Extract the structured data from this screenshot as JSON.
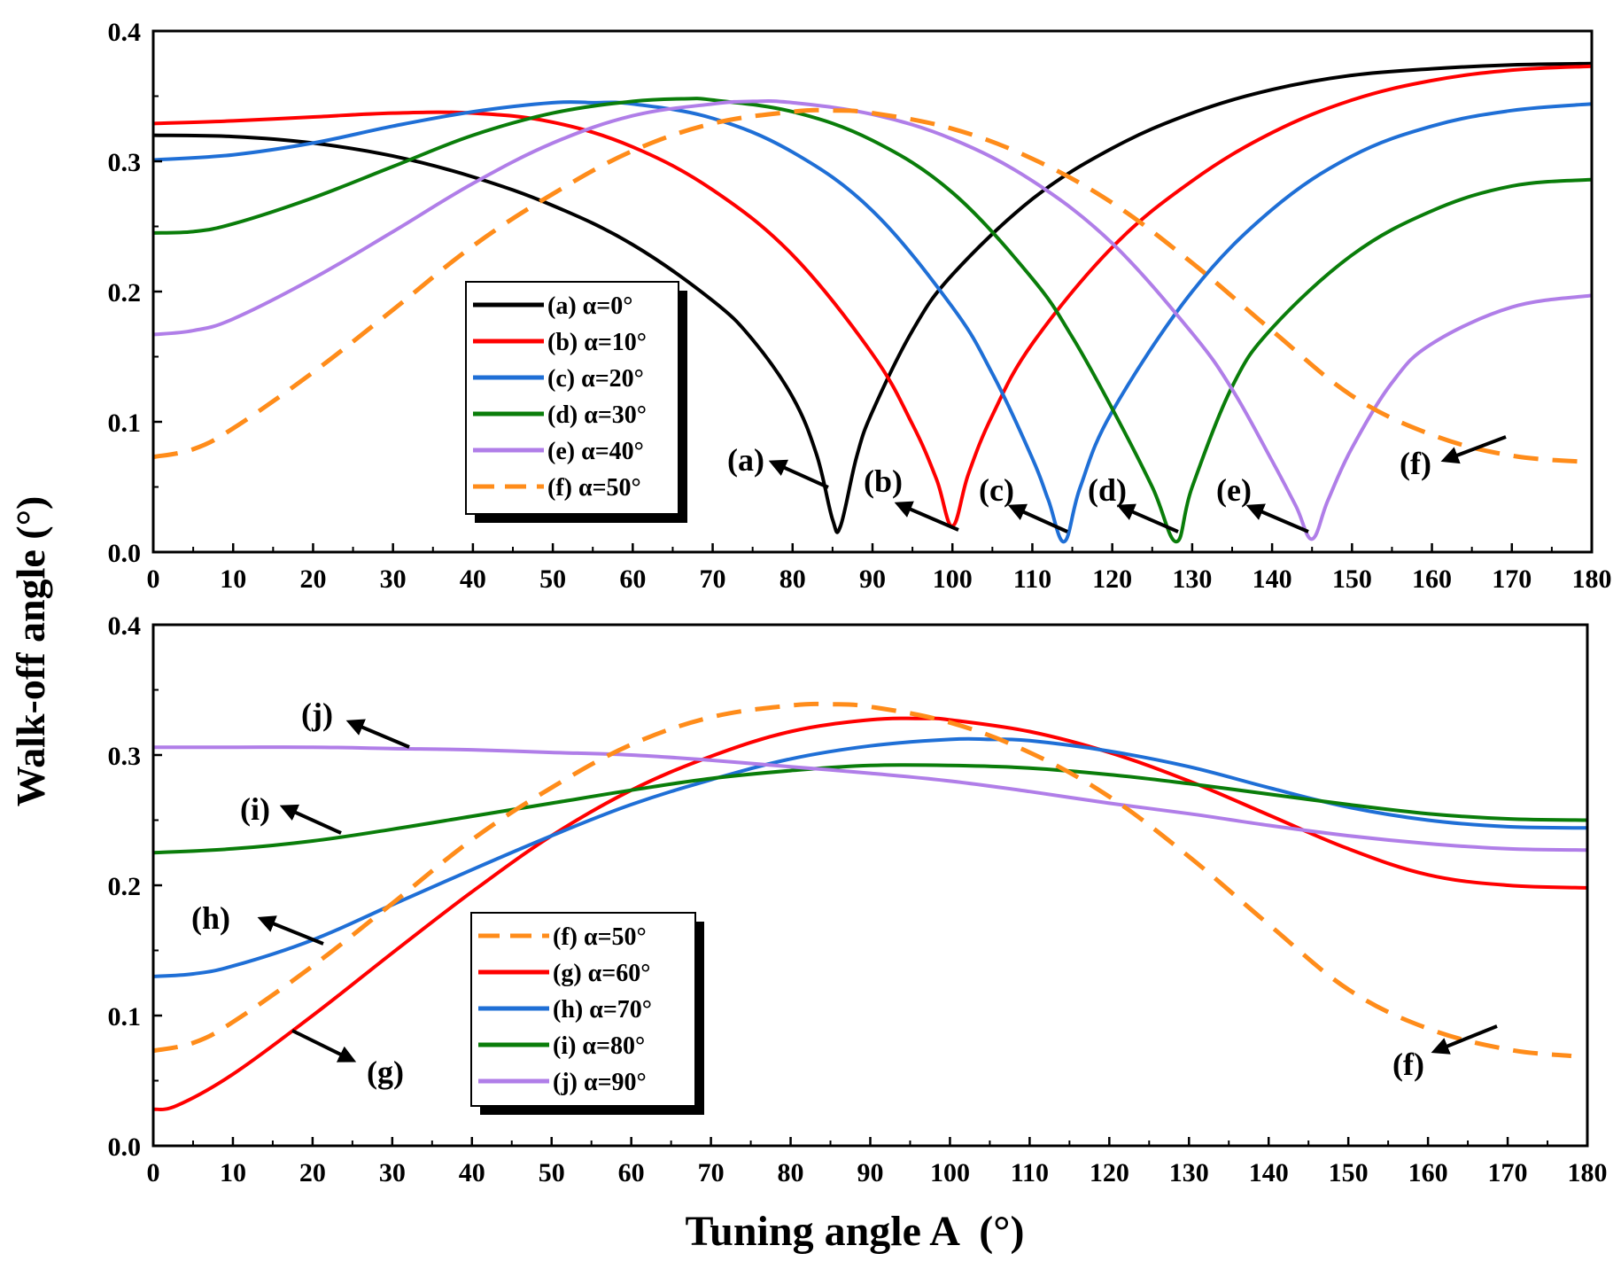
{
  "figure": {
    "ylabel": "Walk-off angle (°)",
    "xlabel": "Tuning angle A  (°)"
  },
  "chart_data": [
    {
      "type": "line",
      "panel": "top",
      "xlim": [
        0,
        180
      ],
      "ylim": [
        0.0,
        0.4
      ],
      "xticks": [
        "0",
        "10",
        "20",
        "30",
        "40",
        "50",
        "60",
        "70",
        "80",
        "90",
        "100",
        "110",
        "120",
        "130",
        "140",
        "150",
        "160",
        "170",
        "180"
      ],
      "yticks": [
        "0.0",
        "0.1",
        "0.2",
        "0.3",
        "0.4"
      ],
      "legend_position": "center-left",
      "series": [
        {
          "name": "(a) α=0°",
          "color": "#000000",
          "dash": "solid",
          "x": [
            0,
            10,
            20,
            30,
            40,
            50,
            60,
            70,
            75,
            80,
            83,
            85,
            86,
            88,
            90,
            95,
            100,
            110,
            120,
            130,
            140,
            150,
            160,
            170,
            180
          ],
          "y": [
            0.32,
            0.319,
            0.314,
            0.304,
            0.288,
            0.266,
            0.236,
            0.193,
            0.163,
            0.119,
            0.075,
            0.025,
            0.02,
            0.073,
            0.108,
            0.17,
            0.213,
            0.271,
            0.31,
            0.337,
            0.355,
            0.366,
            0.371,
            0.374,
            0.375
          ]
        },
        {
          "name": "(b) α=10°",
          "color": "#ff0000",
          "dash": "solid",
          "x": [
            0,
            10,
            20,
            30,
            40,
            50,
            60,
            70,
            80,
            90,
            95,
            98,
            100,
            102,
            105,
            110,
            120,
            130,
            140,
            150,
            160,
            170,
            180
          ],
          "y": [
            0.329,
            0.331,
            0.334,
            0.337,
            0.337,
            0.33,
            0.311,
            0.278,
            0.228,
            0.152,
            0.098,
            0.056,
            0.02,
            0.06,
            0.105,
            0.16,
            0.234,
            0.285,
            0.322,
            0.347,
            0.362,
            0.37,
            0.373
          ]
        },
        {
          "name": "(c) α=20°",
          "color": "#1f6fd6",
          "dash": "solid",
          "x": [
            0,
            10,
            20,
            30,
            40,
            50,
            55,
            60,
            70,
            80,
            90,
            100,
            105,
            110,
            112,
            114,
            116,
            120,
            130,
            140,
            150,
            160,
            170,
            180
          ],
          "y": [
            0.301,
            0.305,
            0.314,
            0.327,
            0.338,
            0.345,
            0.345,
            0.344,
            0.333,
            0.307,
            0.262,
            0.188,
            0.137,
            0.072,
            0.04,
            0.008,
            0.05,
            0.108,
            0.2,
            0.263,
            0.304,
            0.327,
            0.339,
            0.344
          ]
        },
        {
          "name": "(d) α=30°",
          "color": "#0a7d0a",
          "dash": "solid",
          "x": [
            0,
            5,
            10,
            20,
            30,
            40,
            50,
            60,
            67,
            70,
            80,
            90,
            100,
            110,
            115,
            120,
            125,
            128,
            130,
            135,
            140,
            150,
            160,
            170,
            180
          ],
          "y": [
            0.245,
            0.246,
            0.252,
            0.272,
            0.296,
            0.32,
            0.337,
            0.346,
            0.348,
            0.347,
            0.338,
            0.316,
            0.276,
            0.21,
            0.165,
            0.11,
            0.05,
            0.008,
            0.05,
            0.127,
            0.172,
            0.228,
            0.262,
            0.281,
            0.286
          ]
        },
        {
          "name": "(e) α=40°",
          "color": "#b07ee8",
          "dash": "solid",
          "x": [
            0,
            5,
            10,
            20,
            30,
            40,
            50,
            60,
            70,
            75,
            80,
            90,
            100,
            110,
            120,
            130,
            135,
            140,
            143,
            145,
            147,
            150,
            155,
            160,
            170,
            180
          ],
          "y": [
            0.167,
            0.17,
            0.179,
            0.21,
            0.246,
            0.283,
            0.314,
            0.335,
            0.344,
            0.346,
            0.345,
            0.336,
            0.317,
            0.285,
            0.237,
            0.168,
            0.125,
            0.07,
            0.035,
            0.01,
            0.04,
            0.08,
            0.13,
            0.16,
            0.188,
            0.197
          ]
        },
        {
          "name": "(f) α=50°",
          "color": "#ff8c1a",
          "dash": "dashed",
          "x": [
            0,
            5,
            10,
            20,
            30,
            40,
            50,
            60,
            70,
            80,
            85,
            90,
            100,
            110,
            120,
            130,
            140,
            150,
            160,
            170,
            180
          ],
          "y": [
            0.073,
            0.079,
            0.095,
            0.138,
            0.186,
            0.235,
            0.275,
            0.308,
            0.329,
            0.338,
            0.339,
            0.337,
            0.325,
            0.302,
            0.268,
            0.222,
            0.17,
            0.12,
            0.09,
            0.074,
            0.069
          ]
        }
      ],
      "annotations": [
        "(a)",
        "(b)",
        "(c)",
        "(d)",
        "(e)",
        "(f)"
      ]
    },
    {
      "type": "line",
      "panel": "bottom",
      "xlim": [
        0,
        180
      ],
      "ylim": [
        0.0,
        0.4
      ],
      "xticks": [
        "0",
        "10",
        "20",
        "30",
        "40",
        "50",
        "60",
        "70",
        "80",
        "90",
        "100",
        "110",
        "120",
        "130",
        "140",
        "150",
        "160",
        "170",
        "180"
      ],
      "yticks": [
        "0.0",
        "0.1",
        "0.2",
        "0.3",
        "0.4"
      ],
      "legend_position": "bottom-left",
      "series": [
        {
          "name": "(f) α=50°",
          "color": "#ff8c1a",
          "dash": "dashed",
          "x": [
            0,
            5,
            10,
            20,
            30,
            40,
            50,
            60,
            70,
            80,
            85,
            90,
            100,
            110,
            120,
            130,
            140,
            150,
            160,
            170,
            178
          ],
          "y": [
            0.073,
            0.079,
            0.095,
            0.138,
            0.186,
            0.235,
            0.275,
            0.308,
            0.329,
            0.338,
            0.339,
            0.337,
            0.325,
            0.302,
            0.268,
            0.222,
            0.17,
            0.12,
            0.09,
            0.074,
            0.069
          ]
        },
        {
          "name": "(g) α=60°",
          "color": "#ff0000",
          "dash": "solid",
          "x": [
            0,
            3,
            10,
            20,
            30,
            40,
            50,
            60,
            70,
            80,
            90,
            97,
            100,
            110,
            120,
            130,
            140,
            150,
            160,
            170,
            180
          ],
          "y": [
            0.028,
            0.031,
            0.055,
            0.1,
            0.148,
            0.195,
            0.238,
            0.273,
            0.299,
            0.318,
            0.327,
            0.328,
            0.327,
            0.318,
            0.302,
            0.28,
            0.254,
            0.228,
            0.208,
            0.2,
            0.198
          ]
        },
        {
          "name": "(h) α=70°",
          "color": "#1f6fd6",
          "dash": "solid",
          "x": [
            0,
            5,
            10,
            20,
            30,
            40,
            50,
            60,
            70,
            80,
            90,
            100,
            105,
            110,
            120,
            130,
            140,
            150,
            160,
            170,
            180
          ],
          "y": [
            0.13,
            0.132,
            0.138,
            0.158,
            0.185,
            0.212,
            0.238,
            0.262,
            0.281,
            0.297,
            0.307,
            0.312,
            0.312,
            0.311,
            0.303,
            0.291,
            0.275,
            0.26,
            0.25,
            0.245,
            0.244
          ]
        },
        {
          "name": "(i) α=80°",
          "color": "#0a7d0a",
          "dash": "solid",
          "x": [
            0,
            10,
            20,
            30,
            40,
            50,
            60,
            70,
            80,
            90,
            100,
            110,
            120,
            130,
            140,
            150,
            160,
            170,
            180
          ],
          "y": [
            0.225,
            0.228,
            0.234,
            0.243,
            0.253,
            0.263,
            0.273,
            0.282,
            0.288,
            0.292,
            0.292,
            0.29,
            0.285,
            0.278,
            0.27,
            0.262,
            0.255,
            0.251,
            0.25
          ]
        },
        {
          "name": "(j) α=90°",
          "color": "#b07ee8",
          "dash": "solid",
          "x": [
            0,
            10,
            20,
            30,
            40,
            50,
            60,
            70,
            80,
            90,
            100,
            110,
            120,
            130,
            140,
            150,
            160,
            170,
            180
          ],
          "y": [
            0.306,
            0.306,
            0.306,
            0.305,
            0.304,
            0.302,
            0.3,
            0.296,
            0.291,
            0.286,
            0.28,
            0.272,
            0.263,
            0.255,
            0.246,
            0.238,
            0.232,
            0.228,
            0.227
          ]
        }
      ],
      "annotations": [
        "(j)",
        "(i)",
        "(h)",
        "(g)",
        "(f)"
      ]
    }
  ]
}
